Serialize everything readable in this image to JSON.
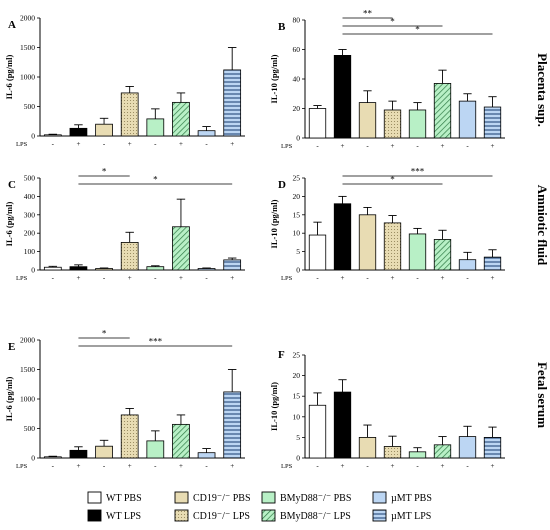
{
  "colors": {
    "wt": "#ffffff",
    "cd19": "#e8dcb3",
    "bmyd88": "#b8f0c6",
    "umt": "#bcd6f3",
    "black": "#000000"
  },
  "row_titles": [
    "Placenta sup.",
    "Amniotic fluid",
    "Fetal serum"
  ],
  "lps_label": "LPS",
  "legend": [
    {
      "label": "WT PBS",
      "group": "wt",
      "lps": false
    },
    {
      "label": "WT LPS",
      "group": "wt",
      "lps": true
    },
    {
      "label": "CD19⁻/⁻ PBS",
      "group": "cd19",
      "lps": false
    },
    {
      "label": "CD19⁻/⁻ LPS",
      "group": "cd19",
      "lps": true
    },
    {
      "label": "BMyD88⁻/⁻ PBS",
      "group": "bmyd88",
      "lps": false
    },
    {
      "label": "BMyD88⁻/⁻ LPS",
      "group": "bmyd88",
      "lps": true
    },
    {
      "label": "µMT PBS",
      "group": "umt",
      "lps": false
    },
    {
      "label": "µMT LPS",
      "group": "umt",
      "lps": true
    }
  ],
  "chart_data": [
    {
      "panel": "A",
      "type": "bar",
      "ylabel": "IL-6 (pg/ml)",
      "ylim": [
        0,
        2000
      ],
      "yticks": [
        0,
        500,
        1000,
        1500,
        2000
      ],
      "lps": [
        "-",
        "+",
        "-",
        "+",
        "-",
        "+",
        "-",
        "+"
      ],
      "values": [
        20,
        130,
        200,
        730,
        290,
        570,
        90,
        1120
      ],
      "errors": [
        10,
        60,
        100,
        110,
        170,
        160,
        70,
        380
      ],
      "significance": []
    },
    {
      "panel": "B",
      "type": "bar",
      "ylabel": "IL-10 (pg/ml)",
      "ylim": [
        0,
        80
      ],
      "yticks": [
        0,
        20,
        40,
        60,
        80
      ],
      "lps": [
        "-",
        "+",
        "-",
        "+",
        "-",
        "+",
        "-",
        "+"
      ],
      "values": [
        20,
        56,
        24,
        19,
        19,
        37,
        25,
        21
      ],
      "errors": [
        2,
        4,
        8,
        6,
        5,
        9,
        5,
        7
      ],
      "significance": [
        {
          "from": 1,
          "to": 3,
          "label": "**"
        },
        {
          "from": 1,
          "to": 5,
          "label": "*"
        },
        {
          "from": 1,
          "to": 7,
          "label": "*"
        }
      ]
    },
    {
      "panel": "C",
      "type": "bar",
      "ylabel": "IL-6 (pg/ml)",
      "ylim": [
        0,
        500
      ],
      "yticks": [
        0,
        100,
        200,
        300,
        400,
        500
      ],
      "lps": [
        "-",
        "+",
        "-",
        "+",
        "-",
        "+",
        "-",
        "+"
      ],
      "values": [
        15,
        18,
        8,
        150,
        18,
        235,
        8,
        55
      ],
      "errors": [
        5,
        10,
        3,
        55,
        5,
        150,
        3,
        10
      ],
      "significance": [
        {
          "from": 1,
          "to": 3,
          "label": "*"
        },
        {
          "from": 1,
          "to": 7,
          "label": "*"
        }
      ]
    },
    {
      "panel": "D",
      "type": "bar",
      "ylabel": "IL-10 (pg/ml)",
      "ylim": [
        0,
        25
      ],
      "yticks": [
        0,
        5,
        10,
        15,
        20,
        25
      ],
      "lps": [
        "-",
        "+",
        "-",
        "+",
        "-",
        "+",
        "-",
        "+"
      ],
      "values": [
        9.5,
        18,
        15,
        12.8,
        9.8,
        8.3,
        2.8,
        3.5
      ],
      "errors": [
        3.5,
        2,
        2,
        2,
        1.5,
        2.5,
        2,
        2
      ],
      "significance": [
        {
          "from": 1,
          "to": 7,
          "label": "***"
        },
        {
          "from": 1,
          "to": 5,
          "label": "*"
        }
      ]
    },
    {
      "panel": "E",
      "type": "bar",
      "ylabel": "IL-6 (pg/ml)",
      "ylim": [
        0,
        2000
      ],
      "yticks": [
        0,
        500,
        1000,
        1500,
        2000
      ],
      "lps": [
        "-",
        "+",
        "-",
        "+",
        "-",
        "+",
        "-",
        "+"
      ],
      "values": [
        20,
        130,
        200,
        730,
        290,
        570,
        90,
        1120
      ],
      "errors": [
        10,
        60,
        100,
        110,
        170,
        160,
        70,
        380
      ],
      "significance": [
        {
          "from": 1,
          "to": 3,
          "label": "*"
        },
        {
          "from": 1,
          "to": 7,
          "label": "***"
        }
      ]
    },
    {
      "panel": "F",
      "type": "bar",
      "ylabel": "IL-10 (pg/ml)",
      "ylim": [
        0,
        25
      ],
      "yticks": [
        0,
        5,
        10,
        15,
        20,
        25
      ],
      "lps": [
        "-",
        "+",
        "-",
        "+",
        "-",
        "+",
        "-",
        "+"
      ],
      "values": [
        12.8,
        16,
        5,
        2.8,
        1.5,
        3.2,
        5.2,
        5
      ],
      "errors": [
        3,
        3,
        3,
        2.5,
        1,
        2,
        2.5,
        2.5
      ],
      "significance": []
    }
  ]
}
